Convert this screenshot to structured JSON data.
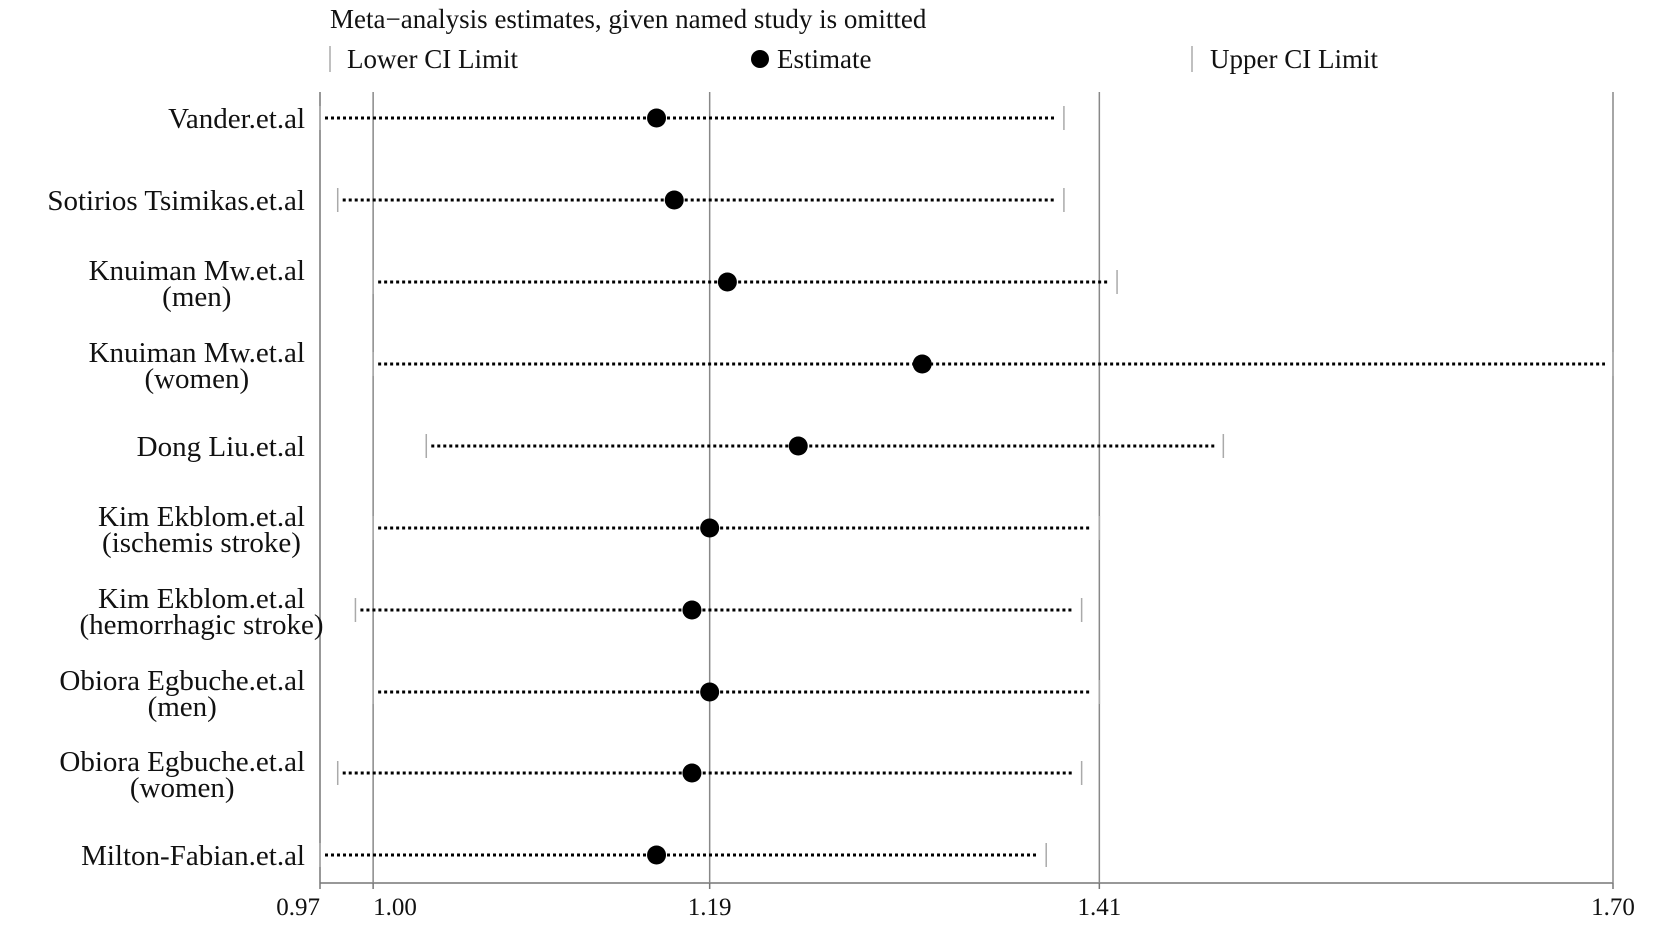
{
  "chart_data": {
    "type": "sensitivity-forest",
    "title": "Meta−analysis estimates, given named study is omitted",
    "legend": {
      "lower": "Lower CI Limit",
      "estimate": "Estimate",
      "upper": "Upper CI Limit"
    },
    "x_ticks": [
      "0.97",
      "1.00",
      "1.19",
      "1.41",
      "1.70"
    ],
    "xlim": [
      0.97,
      1.7
    ],
    "reference_lines": [
      1.0,
      1.19,
      1.41,
      1.7
    ],
    "studies": [
      {
        "label": [
          "Vander.et.al"
        ],
        "lower": 0.97,
        "estimate": 1.16,
        "upper": 1.39
      },
      {
        "label": [
          "Sotirios Tsimikas.et.al"
        ],
        "lower": 0.98,
        "estimate": 1.17,
        "upper": 1.39
      },
      {
        "label": [
          "Knuiman Mw.et.al",
          "(men)"
        ],
        "lower": 1.0,
        "estimate": 1.2,
        "upper": 1.42
      },
      {
        "label": [
          "Knuiman Mw.et.al",
          "(women)"
        ],
        "lower": 1.0,
        "estimate": 1.31,
        "upper": 1.7
      },
      {
        "label": [
          "Dong Liu.et.al"
        ],
        "lower": 1.03,
        "estimate": 1.24,
        "upper": 1.48
      },
      {
        "label": [
          "Kim Ekblom.et.al",
          "(ischemis stroke)"
        ],
        "lower": 1.0,
        "estimate": 1.19,
        "upper": 1.41
      },
      {
        "label": [
          "Kim Ekblom.et.al",
          "(hemorrhagic stroke)"
        ],
        "lower": 0.99,
        "estimate": 1.18,
        "upper": 1.4
      },
      {
        "label": [
          "Obiora Egbuche.et.al",
          "(men)"
        ],
        "lower": 1.0,
        "estimate": 1.19,
        "upper": 1.41
      },
      {
        "label": [
          "Obiora Egbuche.et.al",
          "(women)"
        ],
        "lower": 0.98,
        "estimate": 1.18,
        "upper": 1.4
      },
      {
        "label": [
          "Milton-Fabian.et.al"
        ],
        "lower": 0.97,
        "estimate": 1.16,
        "upper": 1.38
      }
    ]
  }
}
